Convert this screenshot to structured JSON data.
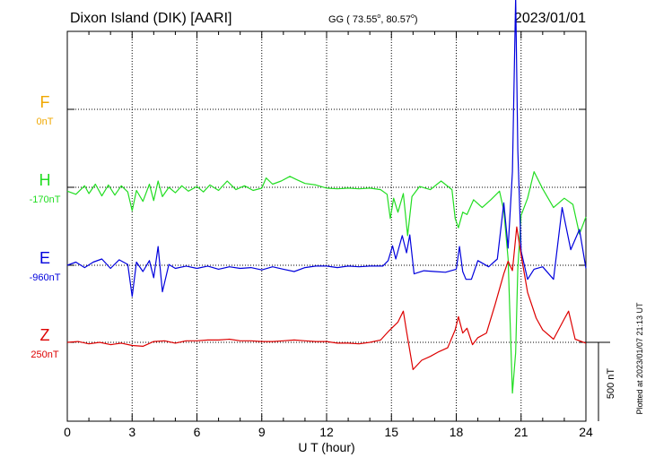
{
  "header": {
    "station": "Dixon Island (DIK)  [AARI]",
    "coords_prefix": "GG ( 73.55",
    "coords_lat_sup": "o",
    "coords_mid": ",  80.57",
    "coords_lon_sup": "o",
    "coords_suffix": ")",
    "date": "2023/01/01"
  },
  "footer": {
    "plotted": "Plotted at 2023/01/07 21:13 UT",
    "scale_label": "500 nT"
  },
  "chart_data": {
    "type": "line",
    "xlabel": "U T (hour)",
    "ylabel": "",
    "xlim": [
      0,
      24
    ],
    "x_ticks": [
      0,
      3,
      6,
      9,
      12,
      15,
      18,
      21,
      24
    ],
    "grid": true,
    "scale_bar_nT": 500,
    "series": [
      {
        "name": "F",
        "baseline_label": "0nT",
        "color": "#f0a800",
        "points": []
      },
      {
        "name": "H",
        "baseline_label": "-170nT",
        "color": "#22dd22",
        "points": [
          [
            0,
            -25
          ],
          [
            0.4,
            -45
          ],
          [
            0.8,
            10
          ],
          [
            1.0,
            -40
          ],
          [
            1.3,
            20
          ],
          [
            1.6,
            -55
          ],
          [
            1.9,
            15
          ],
          [
            2.2,
            -50
          ],
          [
            2.5,
            10
          ],
          [
            2.8,
            -30
          ],
          [
            3.0,
            -150
          ],
          [
            3.2,
            -20
          ],
          [
            3.5,
            -90
          ],
          [
            3.8,
            20
          ],
          [
            4.0,
            -85
          ],
          [
            4.2,
            40
          ],
          [
            4.4,
            -60
          ],
          [
            4.7,
            0
          ],
          [
            5.0,
            -35
          ],
          [
            5.3,
            10
          ],
          [
            5.6,
            -25
          ],
          [
            6.0,
            5
          ],
          [
            6.3,
            -30
          ],
          [
            6.6,
            15
          ],
          [
            7.0,
            -20
          ],
          [
            7.4,
            40
          ],
          [
            7.8,
            -15
          ],
          [
            8.2,
            10
          ],
          [
            8.6,
            -20
          ],
          [
            9.0,
            -5
          ],
          [
            9.2,
            60
          ],
          [
            9.5,
            20
          ],
          [
            9.9,
            40
          ],
          [
            10.3,
            70
          ],
          [
            10.6,
            50
          ],
          [
            11.0,
            25
          ],
          [
            11.5,
            15
          ],
          [
            12.0,
            -5
          ],
          [
            12.5,
            -10
          ],
          [
            13.0,
            -5
          ],
          [
            13.5,
            -10
          ],
          [
            14.0,
            -5
          ],
          [
            14.5,
            -15
          ],
          [
            14.8,
            -45
          ],
          [
            14.95,
            -200
          ],
          [
            15.1,
            -70
          ],
          [
            15.3,
            -160
          ],
          [
            15.55,
            -40
          ],
          [
            15.75,
            -310
          ],
          [
            15.95,
            -60
          ],
          [
            16.3,
            5
          ],
          [
            16.8,
            -15
          ],
          [
            17.3,
            40
          ],
          [
            17.8,
            -15
          ],
          [
            17.95,
            -200
          ],
          [
            18.1,
            -260
          ],
          [
            18.3,
            -160
          ],
          [
            18.5,
            -175
          ],
          [
            18.8,
            -80
          ],
          [
            19.2,
            -130
          ],
          [
            19.6,
            -80
          ],
          [
            20.0,
            -25
          ],
          [
            20.2,
            -150
          ],
          [
            20.4,
            -460
          ],
          [
            20.6,
            -1320
          ],
          [
            20.75,
            -1060
          ],
          [
            20.85,
            -520
          ],
          [
            21.0,
            -180
          ],
          [
            21.3,
            -70
          ],
          [
            21.6,
            100
          ],
          [
            22.0,
            -10
          ],
          [
            22.5,
            -130
          ],
          [
            23.0,
            -70
          ],
          [
            23.4,
            -110
          ],
          [
            23.7,
            -300
          ],
          [
            24.0,
            -190
          ]
        ]
      },
      {
        "name": "E",
        "baseline_label": "-960nT",
        "color": "#0000dd",
        "points": [
          [
            0,
            0
          ],
          [
            0.4,
            20
          ],
          [
            0.8,
            -15
          ],
          [
            1.2,
            20
          ],
          [
            1.6,
            40
          ],
          [
            2.0,
            -20
          ],
          [
            2.4,
            35
          ],
          [
            2.8,
            5
          ],
          [
            3.0,
            -200
          ],
          [
            3.2,
            20
          ],
          [
            3.5,
            -40
          ],
          [
            3.8,
            30
          ],
          [
            4.0,
            -80
          ],
          [
            4.2,
            120
          ],
          [
            4.4,
            -170
          ],
          [
            4.7,
            5
          ],
          [
            5.0,
            -20
          ],
          [
            5.5,
            -5
          ],
          [
            6.0,
            -20
          ],
          [
            6.5,
            -5
          ],
          [
            7.0,
            -25
          ],
          [
            7.5,
            -10
          ],
          [
            8.0,
            -20
          ],
          [
            8.5,
            -15
          ],
          [
            9.0,
            -30
          ],
          [
            9.5,
            -10
          ],
          [
            10.0,
            -25
          ],
          [
            10.5,
            -40
          ],
          [
            11.0,
            -15
          ],
          [
            11.5,
            -5
          ],
          [
            12.0,
            -5
          ],
          [
            12.5,
            -15
          ],
          [
            13.0,
            -5
          ],
          [
            13.5,
            -10
          ],
          [
            14.0,
            -5
          ],
          [
            14.6,
            -5
          ],
          [
            14.85,
            30
          ],
          [
            15.05,
            125
          ],
          [
            15.2,
            40
          ],
          [
            15.5,
            190
          ],
          [
            15.7,
            80
          ],
          [
            15.85,
            195
          ],
          [
            16.05,
            -55
          ],
          [
            16.5,
            -35
          ],
          [
            17.0,
            -40
          ],
          [
            17.5,
            -45
          ],
          [
            18.0,
            -25
          ],
          [
            18.15,
            120
          ],
          [
            18.3,
            -40
          ],
          [
            18.45,
            -90
          ],
          [
            18.7,
            -90
          ],
          [
            19.0,
            30
          ],
          [
            19.5,
            -10
          ],
          [
            19.9,
            40
          ],
          [
            20.2,
            400
          ],
          [
            20.4,
            110
          ],
          [
            20.6,
            600
          ],
          [
            20.75,
            1720
          ],
          [
            20.85,
            740
          ],
          [
            21.0,
            90
          ],
          [
            21.3,
            -90
          ],
          [
            21.6,
            -25
          ],
          [
            22.0,
            -10
          ],
          [
            22.5,
            -90
          ],
          [
            22.9,
            370
          ],
          [
            23.3,
            100
          ],
          [
            23.7,
            230
          ],
          [
            24.0,
            -20
          ]
        ]
      },
      {
        "name": "Z",
        "baseline_label": "250nT",
        "color": "#dd0000",
        "points": [
          [
            0,
            0
          ],
          [
            0.5,
            5
          ],
          [
            1.0,
            -10
          ],
          [
            1.5,
            0
          ],
          [
            2.0,
            -15
          ],
          [
            2.5,
            -5
          ],
          [
            3.0,
            -20
          ],
          [
            3.5,
            -25
          ],
          [
            4.0,
            5
          ],
          [
            4.5,
            10
          ],
          [
            5.0,
            -5
          ],
          [
            5.5,
            10
          ],
          [
            6.0,
            10
          ],
          [
            6.5,
            15
          ],
          [
            7.0,
            15
          ],
          [
            7.5,
            20
          ],
          [
            8.0,
            10
          ],
          [
            8.5,
            10
          ],
          [
            9.0,
            5
          ],
          [
            9.5,
            5
          ],
          [
            10.0,
            10
          ],
          [
            10.5,
            15
          ],
          [
            11.0,
            10
          ],
          [
            11.5,
            5
          ],
          [
            12.0,
            5
          ],
          [
            12.5,
            -5
          ],
          [
            13.0,
            -5
          ],
          [
            13.5,
            -10
          ],
          [
            14.0,
            0
          ],
          [
            14.5,
            15
          ],
          [
            14.9,
            75
          ],
          [
            15.3,
            130
          ],
          [
            15.55,
            200
          ],
          [
            15.7,
            70
          ],
          [
            16.0,
            -175
          ],
          [
            16.4,
            -115
          ],
          [
            16.8,
            -90
          ],
          [
            17.2,
            -60
          ],
          [
            17.6,
            -35
          ],
          [
            17.95,
            80
          ],
          [
            18.1,
            165
          ],
          [
            18.3,
            60
          ],
          [
            18.5,
            90
          ],
          [
            18.75,
            -15
          ],
          [
            19.0,
            30
          ],
          [
            19.4,
            60
          ],
          [
            19.8,
            245
          ],
          [
            20.2,
            440
          ],
          [
            20.4,
            520
          ],
          [
            20.6,
            460
          ],
          [
            20.8,
            740
          ],
          [
            21.0,
            560
          ],
          [
            21.3,
            320
          ],
          [
            21.7,
            155
          ],
          [
            22.0,
            80
          ],
          [
            22.5,
            20
          ],
          [
            23.0,
            150
          ],
          [
            23.2,
            200
          ],
          [
            23.5,
            20
          ],
          [
            24.0,
            -5
          ]
        ]
      }
    ]
  }
}
